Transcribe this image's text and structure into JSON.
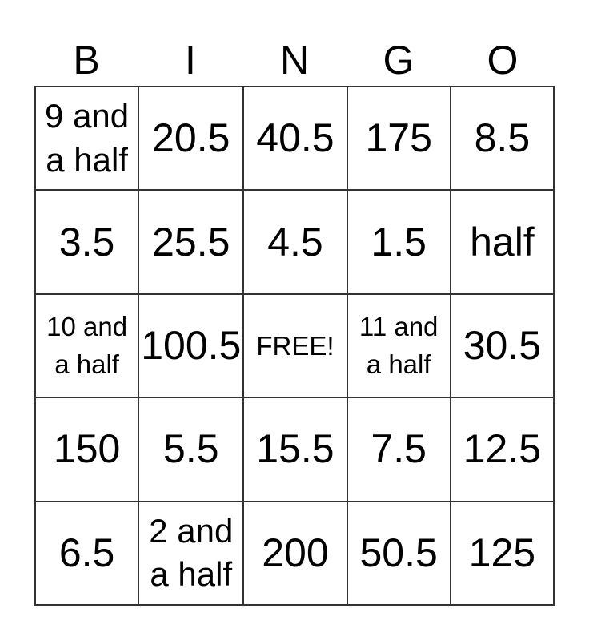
{
  "header": [
    "B",
    "I",
    "N",
    "G",
    "O"
  ],
  "rows": [
    [
      "9 and a half",
      "20.5",
      "40.5",
      "175",
      "8.5"
    ],
    [
      "3.5",
      "25.5",
      "4.5",
      "1.5",
      "half"
    ],
    [
      "10 and a half",
      "100.5",
      "FREE!",
      "11 and a half",
      "30.5"
    ],
    [
      "150",
      "5.5",
      "15.5",
      "7.5",
      "12.5"
    ],
    [
      "6.5",
      "2 and a half",
      "200",
      "50.5",
      "125"
    ]
  ]
}
